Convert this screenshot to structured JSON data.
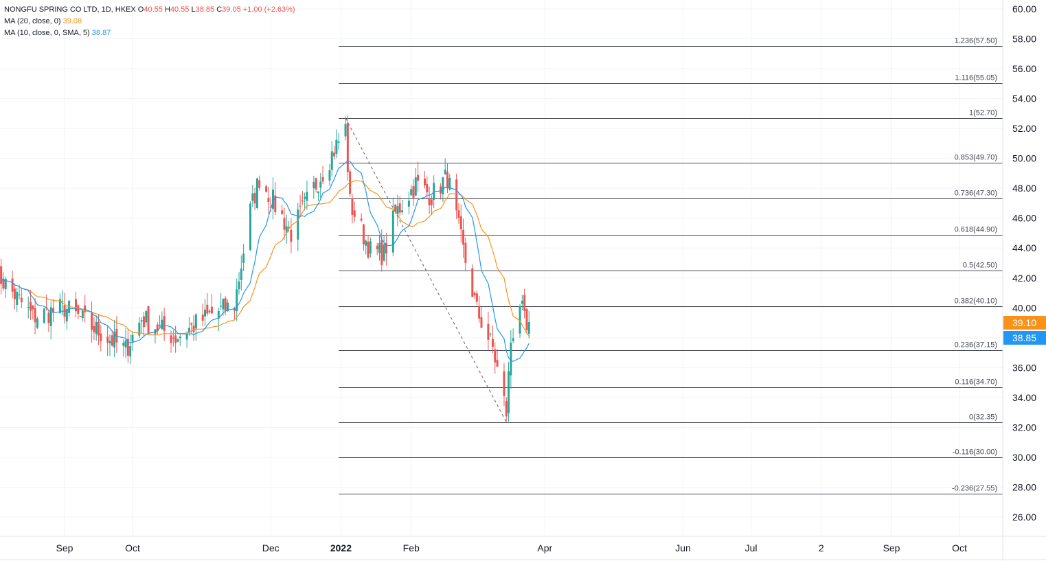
{
  "legend": {
    "symbol": "NONGFU SPRING CO LTD, 1D, HKEX",
    "open_label": "O",
    "open": "40.55",
    "high_label": "H",
    "high": "40.55",
    "low_label": "L",
    "low": "38.85",
    "close_label": "C",
    "close": "39.05",
    "change": "+1.00 (+2.63%)",
    "ma20_label": "MA (20, close, 0)",
    "ma20_value": "39.08",
    "ma10_label": "MA (10, close, 0, SMA, 5)",
    "ma10_value": "38.87"
  },
  "colors": {
    "up": "#26a69a",
    "down": "#ef5350",
    "ma20": "#f7931a",
    "ma10": "#2196f3",
    "fib_line": "#434651",
    "grid": "#f0f3fa",
    "axis_text": "#131722"
  },
  "chart_data": {
    "type": "candlestick",
    "title": "NONGFU SPRING CO LTD, 1D, HKEX",
    "ylim": [
      25,
      60.5
    ],
    "y_ticks": [
      "26.00",
      "28.00",
      "30.00",
      "32.00",
      "34.00",
      "36.00",
      "38.00",
      "40.00",
      "42.00",
      "44.00",
      "46.00",
      "48.00",
      "50.00",
      "52.00",
      "54.00",
      "56.00",
      "58.00",
      "60.00"
    ],
    "x_ticks": [
      {
        "label": "Sep",
        "date": "2021-09-01"
      },
      {
        "label": "Oct",
        "date": "2021-10-01"
      },
      {
        "label": "Dec",
        "date": "2021-12-01"
      },
      {
        "label": "2022",
        "date": "2022-01-01"
      },
      {
        "label": "Feb",
        "date": "2022-02-01"
      },
      {
        "label": "Apr",
        "date": "2022-04-01"
      },
      {
        "label": "Jun",
        "date": "2022-06-01"
      },
      {
        "label": "Jul",
        "date": "2022-07-01"
      },
      {
        "label": "2",
        "date": "2022-08-01"
      },
      {
        "label": "Sep",
        "date": "2022-09-01"
      },
      {
        "label": "Oct",
        "date": "2022-10-01"
      }
    ],
    "price_badges": [
      {
        "value": 39.1,
        "label": "39.10",
        "color": "#f7931a"
      },
      {
        "value": 38.85,
        "label": "38.85",
        "color": "#2196f3"
      }
    ],
    "fib_start_date": "2021-12-31",
    "fib_levels": [
      {
        "ratio": "1.236",
        "value": 57.5,
        "label": "1.236(57.50)"
      },
      {
        "ratio": "1.116",
        "value": 55.05,
        "label": "1.116(55.05)"
      },
      {
        "ratio": "1",
        "value": 52.7,
        "label": "1(52.70)"
      },
      {
        "ratio": "0.853",
        "value": 49.7,
        "label": "0.853(49.70)"
      },
      {
        "ratio": "0.736",
        "value": 47.3,
        "label": "0.736(47.30)"
      },
      {
        "ratio": "0.618",
        "value": 44.9,
        "label": "0.618(44.90)"
      },
      {
        "ratio": "0.5",
        "value": 42.5,
        "label": "0.5(42.50)"
      },
      {
        "ratio": "0.382",
        "value": 40.1,
        "label": "0.382(40.10)"
      },
      {
        "ratio": "0.236",
        "value": 37.15,
        "label": "0.236(37.15)"
      },
      {
        "ratio": "0.116",
        "value": 34.7,
        "label": "0.116(34.70)"
      },
      {
        "ratio": "0",
        "value": 32.35,
        "label": "0(32.35)"
      },
      {
        "ratio": "-0.116",
        "value": 30.0,
        "label": "-0.116(30.00)"
      },
      {
        "ratio": "-0.236",
        "value": 27.55,
        "label": "-0.236(27.55)"
      }
    ],
    "trend_line": {
      "from": {
        "date": "2022-01-03",
        "value": 52.7
      },
      "to": {
        "date": "2022-03-15",
        "value": 32.35
      }
    },
    "candle_waypoints": [
      {
        "date": "2021-08-02",
        "value": 42.3
      },
      {
        "date": "2021-08-18",
        "value": 39.4
      },
      {
        "date": "2021-09-01",
        "value": 40.0
      },
      {
        "date": "2021-09-20",
        "value": 38.0
      },
      {
        "date": "2021-09-28",
        "value": 37.2
      },
      {
        "date": "2021-10-05",
        "value": 39.3
      },
      {
        "date": "2021-10-20",
        "value": 38.0
      },
      {
        "date": "2021-11-05",
        "value": 39.6
      },
      {
        "date": "2021-11-15",
        "value": 40.2
      },
      {
        "date": "2021-11-22",
        "value": 46.5
      },
      {
        "date": "2021-11-26",
        "value": 48.7
      },
      {
        "date": "2021-12-10",
        "value": 45.0
      },
      {
        "date": "2021-12-20",
        "value": 48.0
      },
      {
        "date": "2022-01-03",
        "value": 52.0
      },
      {
        "date": "2022-01-05",
        "value": 47.0
      },
      {
        "date": "2022-01-14",
        "value": 43.8
      },
      {
        "date": "2022-01-20",
        "value": 43.6
      },
      {
        "date": "2022-01-25",
        "value": 46.3
      },
      {
        "date": "2022-02-03",
        "value": 48.3
      },
      {
        "date": "2022-02-10",
        "value": 47.5
      },
      {
        "date": "2022-02-17",
        "value": 48.8
      },
      {
        "date": "2022-02-24",
        "value": 43.8
      },
      {
        "date": "2022-03-02",
        "value": 39.8
      },
      {
        "date": "2022-03-09",
        "value": 37.3
      },
      {
        "date": "2022-03-15",
        "value": 33.0
      },
      {
        "date": "2022-03-17",
        "value": 37.8
      },
      {
        "date": "2022-03-21",
        "value": 40.4
      },
      {
        "date": "2022-03-24",
        "value": 38.3
      },
      {
        "date": "2022-03-25",
        "value": 39.05
      }
    ]
  }
}
